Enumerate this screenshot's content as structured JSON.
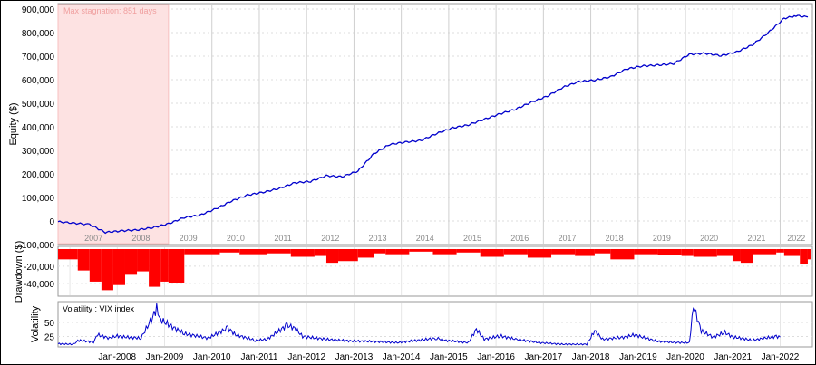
{
  "chart_data": [
    {
      "type": "line",
      "panel": "equity",
      "ylabel": "Equity ($)",
      "ylim": [
        -100000,
        900000
      ],
      "y_ticks": [
        "900,000",
        "800,000",
        "700,000",
        "600,000",
        "500,000",
        "400,000",
        "300,000",
        "200,000",
        "100,000",
        "0",
        "-100,000"
      ],
      "year_labels": [
        "2007",
        "2008",
        "2009",
        "2010",
        "2011",
        "2012",
        "2013",
        "2014",
        "2015",
        "2016",
        "2017",
        "2018",
        "2019",
        "2020",
        "2021",
        "2022"
      ],
      "annotation": "Max stagnation: 851 days",
      "stagnation_period": [
        "2006-10",
        "2009-02"
      ],
      "grid": true,
      "line_color": "#0000cc",
      "shade_color": "#fde2e2",
      "series": [
        {
          "x": [
            "2006-10",
            "2007-06",
            "2007-10",
            "2008-02",
            "2008-06",
            "2008-10",
            "2009-02",
            "2009-06",
            "2009-10",
            "2010-02",
            "2010-06",
            "2010-10",
            "2011-02",
            "2011-06",
            "2011-10",
            "2012-02",
            "2012-06",
            "2012-10",
            "2013-02",
            "2013-06",
            "2013-10",
            "2014-02",
            "2014-06",
            "2014-10",
            "2015-02",
            "2015-06",
            "2015-10",
            "2016-02",
            "2016-06",
            "2016-10",
            "2017-02",
            "2017-06",
            "2017-10",
            "2018-02",
            "2018-06",
            "2018-10",
            "2019-02",
            "2019-06",
            "2019-10",
            "2020-02",
            "2020-06",
            "2020-10",
            "2021-02",
            "2021-06",
            "2021-10",
            "2022-02",
            "2022-05",
            "2022-08"
          ],
          "y": [
            -3000,
            -15000,
            -48000,
            -42000,
            -38000,
            -28000,
            -12000,
            15000,
            25000,
            52000,
            85000,
            110000,
            122000,
            138000,
            162000,
            168000,
            192000,
            188000,
            212000,
            285000,
            325000,
            335000,
            342000,
            372000,
            395000,
            408000,
            432000,
            455000,
            475000,
            505000,
            530000,
            568000,
            592000,
            598000,
            612000,
            645000,
            658000,
            662000,
            668000,
            708000,
            712000,
            702000,
            718000,
            748000,
            800000,
            860000,
            872000,
            866000
          ]
        }
      ]
    },
    {
      "type": "bar",
      "panel": "drawdown",
      "ylabel": "Drawdown ($)",
      "ylim": [
        -55000,
        0
      ],
      "y_ticks": [
        "-20,000",
        "-40,000"
      ],
      "bar_color": "#ff0000",
      "grid": true,
      "series": [
        {
          "x": [
            "2006-10",
            "2007-03",
            "2007-06",
            "2007-09",
            "2007-12",
            "2008-03",
            "2008-06",
            "2008-09",
            "2008-12",
            "2009-02",
            "2009-06",
            "2010-03",
            "2010-08",
            "2011-03",
            "2011-09",
            "2012-03",
            "2012-06",
            "2012-09",
            "2013-02",
            "2013-06",
            "2013-09",
            "2014-03",
            "2014-09",
            "2015-03",
            "2015-09",
            "2016-03",
            "2016-09",
            "2017-03",
            "2017-09",
            "2018-02",
            "2018-06",
            "2018-12",
            "2019-06",
            "2019-12",
            "2020-03",
            "2020-09",
            "2021-01",
            "2021-03",
            "2021-06",
            "2021-12",
            "2022-02",
            "2022-06",
            "2022-08"
          ],
          "y": [
            -12000,
            -25000,
            -38000,
            -48000,
            -42000,
            -30000,
            -26000,
            -44000,
            -38000,
            -40000,
            -6000,
            -4000,
            -6000,
            -5000,
            -9000,
            -8000,
            -16000,
            -14000,
            -10000,
            -5000,
            -6000,
            -3000,
            -6000,
            -4000,
            -9000,
            -6000,
            -10000,
            -6000,
            -8000,
            -5000,
            -12000,
            -6000,
            -7000,
            -8000,
            -9000,
            -8000,
            -14000,
            -16000,
            -6000,
            -4000,
            -8000,
            -18000,
            -12000
          ]
        }
      ]
    },
    {
      "type": "line",
      "panel": "volatility",
      "ylabel": "Volatility",
      "legend": "Volatility : VIX index",
      "x_ticks": [
        "Jan-2008",
        "Jan-2009",
        "Jan-2010",
        "Jan-2011",
        "Jan-2012",
        "Jan-2013",
        "Jan-2014",
        "Jan-2015",
        "Jan-2016",
        "Jan-2017",
        "Jan-2018",
        "Jan-2019",
        "Jan-2020",
        "Jan-2021",
        "Jan-2022"
      ],
      "ylim": [
        8,
        84
      ],
      "y_ticks": [
        "50",
        "25"
      ],
      "line_color": "#0000cc",
      "grid": true,
      "series": [
        {
          "x": [
            "2006-10",
            "2007-02",
            "2007-03",
            "2007-07",
            "2007-08",
            "2007-11",
            "2008-01",
            "2008-03",
            "2008-07",
            "2008-10",
            "2008-11",
            "2008-12",
            "2009-03",
            "2009-06",
            "2009-12",
            "2010-05",
            "2010-07",
            "2010-12",
            "2011-03",
            "2011-08",
            "2011-10",
            "2011-12",
            "2012-06",
            "2012-12",
            "2013-06",
            "2013-12",
            "2014-10",
            "2014-12",
            "2015-06",
            "2015-08",
            "2015-10",
            "2016-02",
            "2016-06",
            "2016-12",
            "2017-06",
            "2017-12",
            "2018-02",
            "2018-04",
            "2018-10",
            "2018-12",
            "2019-06",
            "2019-12",
            "2020-02",
            "2020-03",
            "2020-05",
            "2020-08",
            "2020-11",
            "2021-01",
            "2021-03",
            "2021-06",
            "2021-09",
            "2021-12",
            "2022-01"
          ],
          "y": [
            12,
            11,
            18,
            15,
            28,
            22,
            26,
            24,
            22,
            60,
            75,
            55,
            42,
            30,
            22,
            40,
            28,
            18,
            20,
            45,
            40,
            25,
            20,
            17,
            16,
            14,
            22,
            18,
            14,
            38,
            20,
            26,
            20,
            14,
            11,
            11,
            35,
            20,
            24,
            28,
            16,
            14,
            14,
            80,
            35,
            24,
            32,
            24,
            22,
            18,
            22,
            25,
            24
          ]
        }
      ]
    }
  ]
}
